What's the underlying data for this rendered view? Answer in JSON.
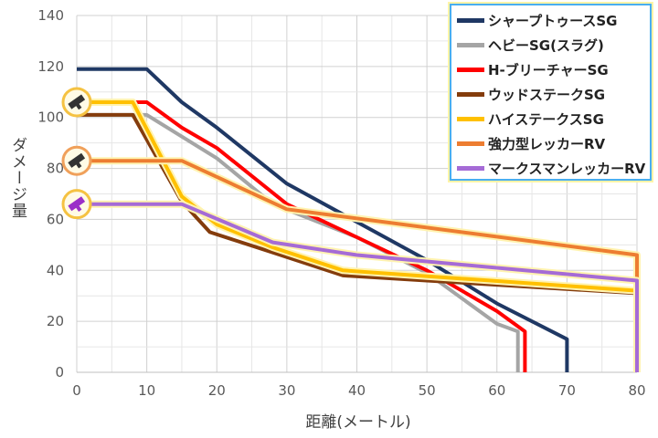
{
  "chart_data": {
    "type": "line",
    "title": "",
    "xlabel": "距離(メートル)",
    "ylabel": "ダメージ量",
    "xlim": [
      0,
      80
    ],
    "ylim": [
      0,
      140
    ],
    "x_ticks": [
      "0",
      "10",
      "20",
      "30",
      "40",
      "50",
      "60",
      "70",
      "80"
    ],
    "y_ticks": [
      "0",
      "20",
      "40",
      "60",
      "80",
      "100",
      "120",
      "140"
    ],
    "grid": "vertical and horizontal",
    "legend_position": "top-right",
    "series": [
      {
        "name": "シャープトゥースSG",
        "color": "#1f3864",
        "points": [
          [
            0,
            119
          ],
          [
            10,
            119
          ],
          [
            15,
            106
          ],
          [
            20,
            96
          ],
          [
            30,
            74
          ],
          [
            40,
            59
          ],
          [
            50,
            44
          ],
          [
            60,
            27
          ],
          [
            70,
            13
          ],
          [
            70,
            0
          ]
        ]
      },
      {
        "name": "ヘビーSG(スラグ)",
        "color": "#a5a5a5",
        "points": [
          [
            0,
            101
          ],
          [
            10,
            101
          ],
          [
            20,
            84
          ],
          [
            28,
            66
          ],
          [
            40,
            53
          ],
          [
            50,
            39
          ],
          [
            60,
            19
          ],
          [
            63,
            16
          ],
          [
            63,
            0
          ]
        ]
      },
      {
        "name": "H-ブリーチャーSG",
        "color": "#ff0000",
        "points": [
          [
            0,
            106
          ],
          [
            10,
            106
          ],
          [
            15,
            96
          ],
          [
            20,
            88
          ],
          [
            30,
            66
          ],
          [
            40,
            53
          ],
          [
            50,
            40
          ],
          [
            60,
            24
          ],
          [
            64,
            16
          ],
          [
            64,
            0
          ]
        ]
      },
      {
        "name": "ウッドステークSG",
        "color": "#843c0c",
        "points": [
          [
            0,
            101
          ],
          [
            8,
            101
          ],
          [
            15,
            67
          ],
          [
            19,
            55
          ],
          [
            28,
            47
          ],
          [
            38,
            38
          ],
          [
            50,
            36
          ],
          [
            80,
            31
          ]
        ]
      },
      {
        "name": "ハイステークスSG",
        "color": "#ffc000",
        "points": [
          [
            0,
            106
          ],
          [
            8,
            106
          ],
          [
            15,
            69
          ],
          [
            20,
            58
          ],
          [
            28,
            49
          ],
          [
            38,
            40
          ],
          [
            80,
            32
          ]
        ]
      },
      {
        "name": "強力型レッカーRV",
        "color": "#ed7d31",
        "points": [
          [
            0,
            83
          ],
          [
            15,
            83
          ],
          [
            30,
            64
          ],
          [
            80,
            46
          ],
          [
            80,
            0
          ]
        ]
      },
      {
        "name": "マークスマンレッカーRV",
        "color": "#a56bd6",
        "points": [
          [
            0,
            66
          ],
          [
            15,
            66
          ],
          [
            28,
            51
          ],
          [
            40,
            46
          ],
          [
            80,
            36
          ],
          [
            80,
            0
          ]
        ]
      }
    ],
    "annotations": [
      {
        "name": "weapon-icon-shotgun",
        "y": 106,
        "ring_color": "#f5c242",
        "body_color": "#333333"
      },
      {
        "name": "weapon-icon-launcher",
        "y": 83,
        "ring_color": "#f0a05a",
        "body_color": "#333333"
      },
      {
        "name": "weapon-icon-rv",
        "y": 66,
        "ring_color": "#f5c242",
        "body_color": "#9b2fc8"
      }
    ]
  }
}
